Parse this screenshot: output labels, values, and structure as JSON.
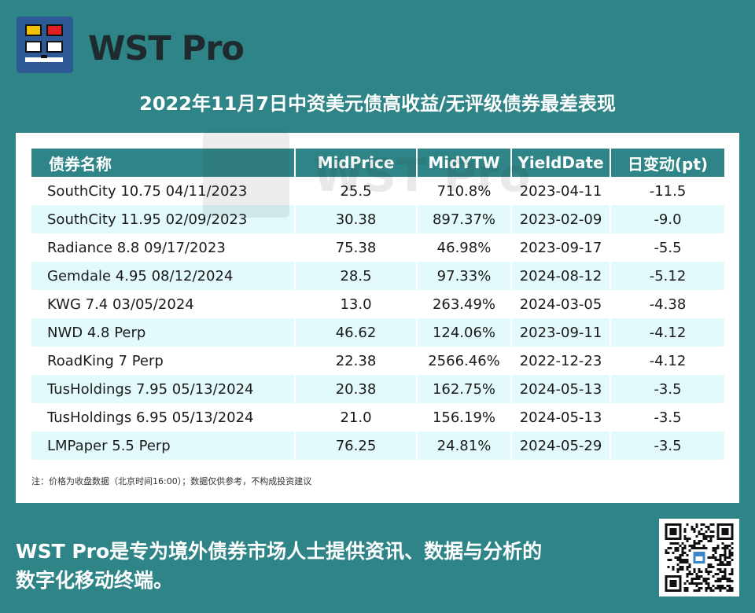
{
  "brand": {
    "name": "WST Pro",
    "watermark": "WST Pro"
  },
  "headline": "2022年11月7日中资美元债高收益/无评级债券最差表现",
  "table": {
    "headers": [
      "债券名称",
      "MidPrice",
      "MidYTW",
      "YieldDate",
      "日变动(pt)"
    ],
    "rows": [
      [
        "SouthCity 10.75 04/11/2023",
        "25.5",
        "710.8%",
        "2023-04-11",
        "-11.5"
      ],
      [
        "SouthCity 11.95 02/09/2023",
        "30.38",
        "897.37%",
        "2023-02-09",
        "-9.0"
      ],
      [
        "Radiance 8.8 09/17/2023",
        "75.38",
        "46.98%",
        "2023-09-17",
        "-5.5"
      ],
      [
        "Gemdale 4.95 08/12/2024",
        "28.5",
        "97.33%",
        "2024-08-12",
        "-5.12"
      ],
      [
        "KWG 7.4 03/05/2024",
        "13.0",
        "263.49%",
        "2024-03-05",
        "-4.38"
      ],
      [
        "NWD 4.8 Perp",
        "46.62",
        "124.06%",
        "2023-09-11",
        "-4.12"
      ],
      [
        "RoadKing 7 Perp",
        "22.38",
        "2566.46%",
        "2022-12-23",
        "-4.12"
      ],
      [
        "TusHoldings 7.95 05/13/2024",
        "20.38",
        "162.75%",
        "2024-05-13",
        "-3.5"
      ],
      [
        "TusHoldings 6.95 05/13/2024",
        "21.0",
        "156.19%",
        "2024-05-13",
        "-3.5"
      ],
      [
        "LMPaper 5.5 Perp",
        "76.25",
        "24.81%",
        "2024-05-29",
        "-3.5"
      ]
    ]
  },
  "footnote": "注：价格为收盘数据（北京时间16:00）；数据仅供参考，不构成投资建议",
  "bottom_text_line1": "WST Pro是专为境外债券市场人士提供资讯、数据与分析的",
  "bottom_text_line2": "数字化移动终端。",
  "colors": {
    "background": "#2e8486",
    "header": "#2e8486",
    "row_alt": "#e2fafc",
    "logo_bg": "#2d5a94"
  }
}
